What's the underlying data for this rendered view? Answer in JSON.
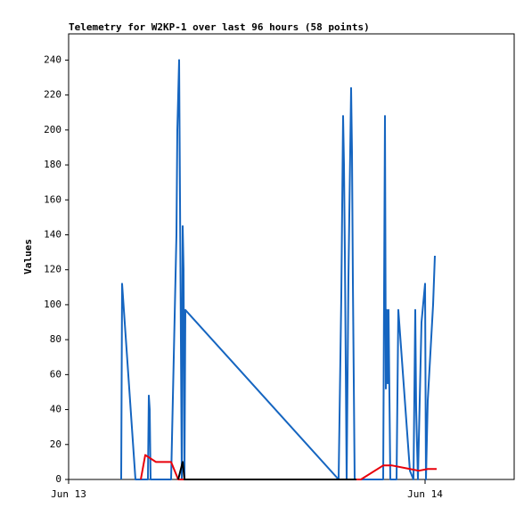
{
  "chart_data": {
    "type": "line",
    "title": "Telemetry for W2KP-1 over last 96 hours (58 points)",
    "y_label": "Values",
    "xlim": [
      0,
      30
    ],
    "xticks": [
      {
        "value": 0,
        "label": "Jun 13"
      },
      {
        "value": 24,
        "label": "Jun 14"
      }
    ],
    "ylim": [
      0,
      255
    ],
    "yticks": [
      0,
      20,
      40,
      60,
      80,
      100,
      120,
      140,
      160,
      180,
      200,
      220,
      240
    ],
    "grid": false,
    "series": [
      {
        "color": "#1565c0",
        "x": [
          3.54,
          3.6,
          4.5,
          5.34,
          5.4,
          5.46,
          5.52,
          6.9,
          7.26,
          7.32,
          7.44,
          7.5,
          7.62,
          7.68,
          7.74,
          7.8,
          7.86,
          18.18,
          18.36,
          18.48,
          18.54,
          18.6,
          18.72,
          18.84,
          19.02,
          19.08,
          19.14,
          19.26,
          21.18,
          21.24,
          21.3,
          21.36,
          21.42,
          21.48,
          21.54,
          21.66,
          22.08,
          22.2,
          22.98,
          23.22,
          23.34,
          23.4,
          23.52,
          23.64,
          23.76,
          24,
          24.06,
          24.18,
          24.54,
          24.66
        ],
        "values": [
          0,
          112,
          0,
          0,
          48,
          40,
          0,
          0,
          140,
          200,
          240,
          160,
          0,
          145,
          120,
          0,
          97,
          0,
          105,
          208,
          180,
          130,
          0,
          115,
          224,
          187,
          113,
          0,
          0,
          105,
          208,
          52,
          97,
          55,
          97,
          0,
          0,
          97,
          5,
          0,
          97,
          40,
          0,
          45,
          90,
          112,
          0,
          45,
          100,
          128
        ]
      },
      {
        "color": "#e8000b",
        "x": [
          4.86,
          5.16,
          5.88,
          6.9,
          7.38,
          19.68,
          21.18,
          21.78,
          22.98,
          23.58,
          24.18,
          24.78
        ],
        "values": [
          0,
          14,
          10,
          10,
          0,
          0,
          8,
          8,
          6,
          5,
          6,
          6
        ]
      },
      {
        "color": "#000000",
        "x": [
          7.38,
          7.68,
          7.8,
          19.38
        ],
        "values": [
          0,
          10,
          0,
          0
        ]
      }
    ]
  }
}
